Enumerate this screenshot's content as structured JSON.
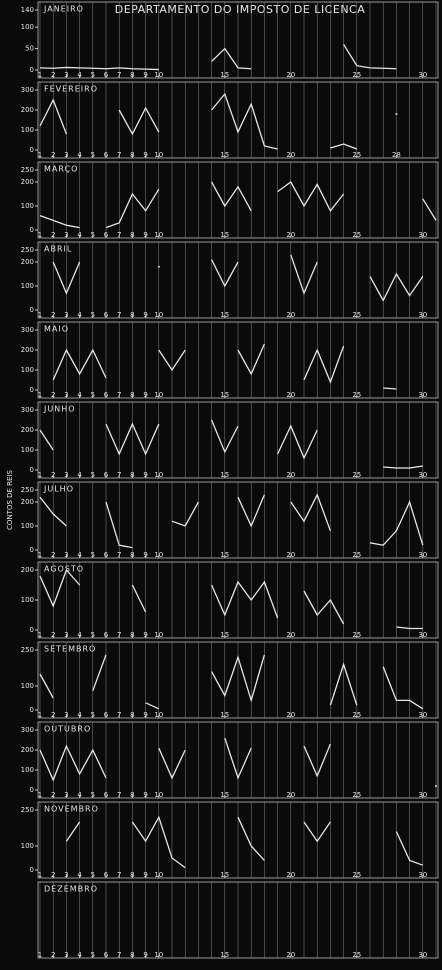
{
  "title": "DEPARTAMENTO DO IMPOSTO DE LICENCA",
  "y_label": "CONTOS DE REIS",
  "chart_data": [
    {
      "type": "line",
      "name": "JANEIRO",
      "color": "#e6e6e6",
      "ylim": [
        0,
        140
      ],
      "yticks": [
        0,
        50,
        100,
        140
      ],
      "xticks": [
        1,
        2,
        3,
        4,
        5,
        6,
        7,
        8,
        9,
        10,
        15,
        20,
        25,
        30
      ],
      "grid": true,
      "x": [
        1,
        2,
        3,
        4,
        5,
        6,
        7,
        8,
        9,
        10,
        11,
        12,
        13,
        14,
        15,
        16,
        17,
        18,
        19,
        20,
        21,
        22,
        23,
        24,
        25,
        26,
        27,
        28,
        29,
        30,
        31
      ],
      "values": [
        5,
        4,
        6,
        5,
        4,
        3,
        5,
        3,
        2,
        1,
        null,
        null,
        null,
        20,
        50,
        5,
        3,
        null,
        null,
        null,
        null,
        null,
        null,
        60,
        10,
        5,
        4,
        3,
        null,
        null,
        null
      ]
    },
    {
      "type": "line",
      "name": "FEVEREIRO",
      "color": "#e6e6e6",
      "ylim": [
        0,
        300
      ],
      "yticks": [
        0,
        100,
        200,
        300
      ],
      "xticks": [
        1,
        2,
        3,
        4,
        5,
        6,
        7,
        8,
        9,
        10,
        15,
        20,
        25,
        28
      ],
      "grid": true,
      "x": [
        1,
        2,
        3,
        4,
        5,
        6,
        7,
        8,
        9,
        10,
        11,
        12,
        13,
        14,
        15,
        16,
        17,
        18,
        19,
        20,
        21,
        22,
        23,
        24,
        25,
        26,
        27,
        28
      ],
      "values": [
        120,
        250,
        80,
        null,
        null,
        null,
        200,
        80,
        210,
        90,
        null,
        null,
        null,
        200,
        280,
        90,
        230,
        20,
        5,
        null,
        null,
        null,
        10,
        30,
        5,
        null,
        null,
        180
      ]
    },
    {
      "type": "line",
      "name": "MARÇO",
      "color": "#e6e6e6",
      "ylim": [
        0,
        250
      ],
      "yticks": [
        0,
        100,
        200,
        250
      ],
      "xticks": [
        1,
        2,
        3,
        4,
        5,
        6,
        7,
        8,
        9,
        10,
        15,
        20,
        25,
        30
      ],
      "grid": true,
      "x": [
        1,
        2,
        3,
        4,
        5,
        6,
        7,
        8,
        9,
        10,
        11,
        12,
        13,
        14,
        15,
        16,
        17,
        18,
        19,
        20,
        21,
        22,
        23,
        24,
        25,
        26,
        27,
        28,
        29,
        30,
        31
      ],
      "values": [
        60,
        40,
        20,
        10,
        null,
        10,
        30,
        150,
        80,
        170,
        null,
        null,
        null,
        200,
        100,
        180,
        80,
        null,
        160,
        200,
        100,
        190,
        80,
        150,
        null,
        null,
        null,
        null,
        null,
        130,
        40
      ]
    },
    {
      "type": "line",
      "name": "ABRIL",
      "color": "#e6e6e6",
      "ylim": [
        0,
        250
      ],
      "yticks": [
        0,
        100,
        200,
        250
      ],
      "xticks": [
        1,
        2,
        3,
        4,
        5,
        6,
        7,
        8,
        9,
        10,
        15,
        20,
        25,
        30
      ],
      "grid": true,
      "x": [
        1,
        2,
        3,
        4,
        5,
        6,
        7,
        8,
        9,
        10,
        11,
        12,
        13,
        14,
        15,
        16,
        17,
        18,
        19,
        20,
        21,
        22,
        23,
        24,
        25,
        26,
        27,
        28,
        29,
        30
      ],
      "values": [
        null,
        200,
        70,
        200,
        null,
        null,
        null,
        null,
        null,
        180,
        null,
        null,
        null,
        210,
        100,
        200,
        null,
        null,
        null,
        230,
        70,
        200,
        null,
        null,
        null,
        140,
        40,
        150,
        60,
        140
      ]
    },
    {
      "type": "line",
      "name": "MAIO",
      "color": "#e6e6e6",
      "ylim": [
        0,
        300
      ],
      "yticks": [
        0,
        100,
        200,
        300
      ],
      "xticks": [
        1,
        2,
        3,
        4,
        5,
        6,
        7,
        8,
        9,
        10,
        15,
        20,
        25,
        30
      ],
      "grid": true,
      "x": [
        1,
        2,
        3,
        4,
        5,
        6,
        7,
        8,
        9,
        10,
        11,
        12,
        13,
        14,
        15,
        16,
        17,
        18,
        19,
        20,
        21,
        22,
        23,
        24,
        25,
        26,
        27,
        28,
        29,
        30,
        31
      ],
      "values": [
        null,
        50,
        200,
        80,
        200,
        60,
        null,
        null,
        null,
        200,
        100,
        200,
        null,
        null,
        null,
        200,
        80,
        230,
        null,
        null,
        50,
        200,
        40,
        220,
        null,
        null,
        10,
        5,
        null,
        null,
        null
      ]
    },
    {
      "type": "line",
      "name": "JUNHO",
      "color": "#e6e6e6",
      "ylim": [
        0,
        300
      ],
      "yticks": [
        0,
        100,
        200,
        300
      ],
      "xticks": [
        1,
        2,
        3,
        4,
        5,
        6,
        7,
        8,
        9,
        10,
        15,
        20,
        25,
        30
      ],
      "grid": true,
      "x": [
        1,
        2,
        3,
        4,
        5,
        6,
        7,
        8,
        9,
        10,
        11,
        12,
        13,
        14,
        15,
        16,
        17,
        18,
        19,
        20,
        21,
        22,
        23,
        24,
        25,
        26,
        27,
        28,
        29,
        30
      ],
      "values": [
        200,
        100,
        null,
        null,
        null,
        230,
        80,
        230,
        80,
        230,
        null,
        null,
        null,
        250,
        90,
        220,
        null,
        null,
        80,
        220,
        60,
        200,
        null,
        null,
        null,
        null,
        15,
        10,
        10,
        20
      ]
    },
    {
      "type": "line",
      "name": "JULHO",
      "color": "#e6e6e6",
      "ylim": [
        0,
        250
      ],
      "yticks": [
        0,
        100,
        200,
        250
      ],
      "xticks": [
        1,
        2,
        3,
        4,
        5,
        6,
        7,
        8,
        9,
        10,
        15,
        20,
        25,
        30
      ],
      "grid": true,
      "x": [
        1,
        2,
        3,
        4,
        5,
        6,
        7,
        8,
        9,
        10,
        11,
        12,
        13,
        14,
        15,
        16,
        17,
        18,
        19,
        20,
        21,
        22,
        23,
        24,
        25,
        26,
        27,
        28,
        29,
        30,
        31
      ],
      "values": [
        220,
        150,
        100,
        null,
        null,
        200,
        20,
        10,
        null,
        null,
        120,
        100,
        200,
        null,
        null,
        220,
        100,
        230,
        null,
        200,
        120,
        230,
        80,
        null,
        null,
        30,
        20,
        80,
        200,
        20,
        null
      ]
    },
    {
      "type": "line",
      "name": "AGOSTO",
      "color": "#e6e6e6",
      "ylim": [
        0,
        200
      ],
      "yticks": [
        0,
        100,
        200
      ],
      "xticks": [
        1,
        2,
        3,
        4,
        5,
        6,
        7,
        8,
        9,
        10,
        15,
        20,
        25,
        30
      ],
      "grid": true,
      "x": [
        1,
        2,
        3,
        4,
        5,
        6,
        7,
        8,
        9,
        10,
        11,
        12,
        13,
        14,
        15,
        16,
        17,
        18,
        19,
        20,
        21,
        22,
        23,
        24,
        25,
        26,
        27,
        28,
        29,
        30,
        31
      ],
      "values": [
        180,
        80,
        200,
        150,
        null,
        null,
        null,
        150,
        60,
        null,
        null,
        null,
        null,
        150,
        50,
        160,
        100,
        160,
        40,
        null,
        130,
        50,
        100,
        20,
        null,
        null,
        null,
        10,
        5,
        5,
        null
      ]
    },
    {
      "type": "line",
      "name": "SETEMBRO",
      "color": "#e6e6e6",
      "ylim": [
        0,
        250
      ],
      "yticks": [
        0,
        100,
        250
      ],
      "xticks": [
        1,
        2,
        3,
        4,
        5,
        6,
        7,
        8,
        9,
        10,
        15,
        20,
        25,
        30
      ],
      "grid": true,
      "x": [
        1,
        2,
        3,
        4,
        5,
        6,
        7,
        8,
        9,
        10,
        11,
        12,
        13,
        14,
        15,
        16,
        17,
        18,
        19,
        20,
        21,
        22,
        23,
        24,
        25,
        26,
        27,
        28,
        29,
        30
      ],
      "values": [
        150,
        50,
        null,
        null,
        80,
        230,
        null,
        null,
        30,
        5,
        null,
        null,
        null,
        160,
        60,
        220,
        40,
        230,
        null,
        null,
        null,
        null,
        20,
        190,
        20,
        null,
        180,
        40,
        40,
        5
      ]
    },
    {
      "type": "line",
      "name": "OUTUBRO",
      "color": "#e6e6e6",
      "ylim": [
        0,
        300
      ],
      "yticks": [
        0,
        100,
        200,
        300
      ],
      "xticks": [
        1,
        2,
        3,
        4,
        5,
        6,
        7,
        8,
        9,
        10,
        15,
        20,
        25,
        30
      ],
      "grid": true,
      "x": [
        1,
        2,
        3,
        4,
        5,
        6,
        7,
        8,
        9,
        10,
        11,
        12,
        13,
        14,
        15,
        16,
        17,
        18,
        19,
        20,
        21,
        22,
        23,
        24,
        25,
        26,
        27,
        28,
        29,
        30,
        31
      ],
      "values": [
        200,
        50,
        220,
        80,
        200,
        60,
        null,
        null,
        null,
        210,
        60,
        200,
        null,
        null,
        260,
        60,
        210,
        null,
        null,
        null,
        220,
        70,
        230,
        null,
        null,
        null,
        null,
        null,
        null,
        null,
        20
      ]
    },
    {
      "type": "line",
      "name": "NOVEMBRO",
      "color": "#e6e6e6",
      "ylim": [
        0,
        250
      ],
      "yticks": [
        0,
        100,
        250
      ],
      "xticks": [
        1,
        2,
        3,
        4,
        5,
        6,
        7,
        8,
        9,
        10,
        15,
        20,
        25,
        30
      ],
      "grid": true,
      "x": [
        1,
        2,
        3,
        4,
        5,
        6,
        7,
        8,
        9,
        10,
        11,
        12,
        13,
        14,
        15,
        16,
        17,
        18,
        19,
        20,
        21,
        22,
        23,
        24,
        25,
        26,
        27,
        28,
        29,
        30
      ],
      "values": [
        null,
        null,
        120,
        200,
        null,
        null,
        null,
        200,
        120,
        220,
        50,
        10,
        null,
        null,
        null,
        220,
        100,
        40,
        null,
        null,
        200,
        120,
        200,
        null,
        null,
        null,
        null,
        160,
        40,
        20
      ]
    },
    {
      "type": "line",
      "name": "DEZEMBRO",
      "color": "#e6e6e6",
      "ylim": [
        0,
        250
      ],
      "yticks": [],
      "xticks": [
        1,
        2,
        3,
        4,
        5,
        6,
        7,
        8,
        9,
        10,
        15,
        20,
        25,
        30
      ],
      "grid": true,
      "x": [],
      "values": []
    }
  ]
}
